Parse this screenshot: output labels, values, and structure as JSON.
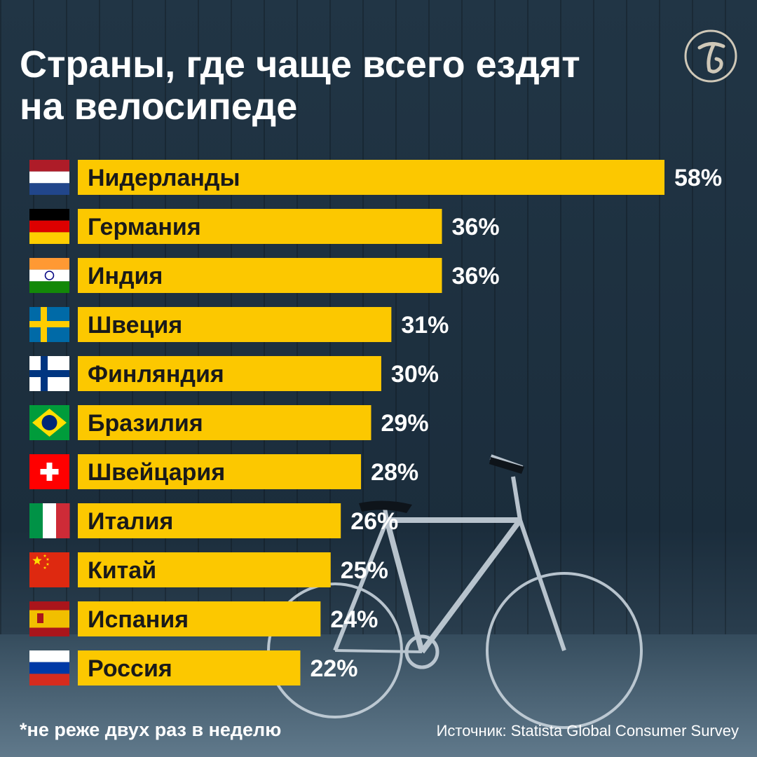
{
  "title": "Страны, где чаще всего ездят\nна велосипеде",
  "footnote": "*не реже двух раз в неделю",
  "source": "Источник: Statista Global Consumer Survey",
  "logo_icon": "publisher-logo-icon",
  "colors": {
    "bar": "#fcc800",
    "background": "#1c2e3d",
    "text": "#ffffff",
    "bar_text": "#1a1a1a"
  },
  "chart_data": {
    "type": "bar",
    "orientation": "horizontal",
    "categories": [
      "Нидерланды",
      "Германия",
      "Индия",
      "Швеция",
      "Финляндия",
      "Бразилия",
      "Швейцария",
      "Италия",
      "Китай",
      "Испания",
      "Россия"
    ],
    "flags": [
      "netherlands",
      "germany",
      "india",
      "sweden",
      "finland",
      "brazil",
      "switzerland",
      "italy",
      "china",
      "spain",
      "russia"
    ],
    "values": [
      58,
      36,
      36,
      31,
      30,
      29,
      28,
      26,
      25,
      24,
      22
    ],
    "value_labels": [
      "58%",
      "36%",
      "36%",
      "31%",
      "30%",
      "29%",
      "28%",
      "26%",
      "25%",
      "24%",
      "22%"
    ],
    "unit": "%",
    "xlim": [
      0,
      58
    ]
  }
}
